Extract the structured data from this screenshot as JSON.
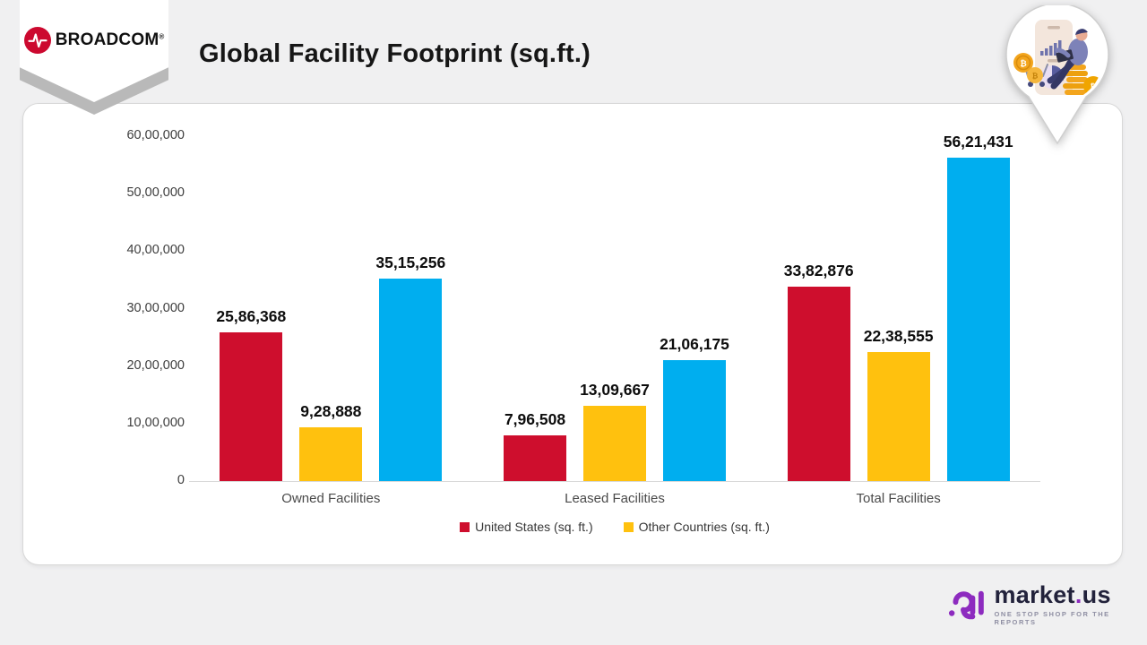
{
  "header": {
    "title": "Global Facility Footprint (sq.ft.)"
  },
  "broadcom": {
    "wordmark": "BROADCOM",
    "reg_mark": "®",
    "logo_color": "#cc092f"
  },
  "chart_data": {
    "type": "bar",
    "title": "Global Facility Footprint (sq.ft.)",
    "xlabel": "",
    "ylabel": "",
    "grid": false,
    "legend_position": "bottom",
    "ylim": [
      0,
      6000000
    ],
    "categories": [
      "Owned Facilities",
      "Leased Facilities",
      "Total Facilities"
    ],
    "y_ticks": [
      {
        "label": "60,00,000",
        "value": 6000000
      },
      {
        "label": "50,00,000",
        "value": 5000000
      },
      {
        "label": "40,00,000",
        "value": 4000000
      },
      {
        "label": "30,00,000",
        "value": 3000000
      },
      {
        "label": "20,00,000",
        "value": 2000000
      },
      {
        "label": "10,00,000",
        "value": 1000000
      },
      {
        "label": "0",
        "value": 0
      }
    ],
    "series": [
      {
        "name": "United States (sq. ft.)",
        "color": "#ce0e2d",
        "in_legend": true,
        "values": [
          2586368,
          796508,
          3382876
        ],
        "labels": [
          "25,86,368",
          "7,96,508",
          "33,82,876"
        ]
      },
      {
        "name": "Other Countries (sq. ft.)",
        "color": "#ffc10e",
        "in_legend": true,
        "values": [
          928888,
          1309667,
          2238555
        ],
        "labels": [
          "9,28,888",
          "13,09,667",
          "22,38,555"
        ]
      },
      {
        "name": "",
        "color": "#00aeef",
        "in_legend": false,
        "values": [
          3515256,
          2106175,
          5621431
        ],
        "labels": [
          "35,15,256",
          "21,06,175",
          "56,21,431"
        ]
      }
    ]
  },
  "footer": {
    "brand_pre": "market",
    "brand_dot": ".",
    "brand_post": "us",
    "tagline": "ONE STOP SHOP FOR THE REPORTS",
    "brand_purple": "#8d2bbf"
  }
}
